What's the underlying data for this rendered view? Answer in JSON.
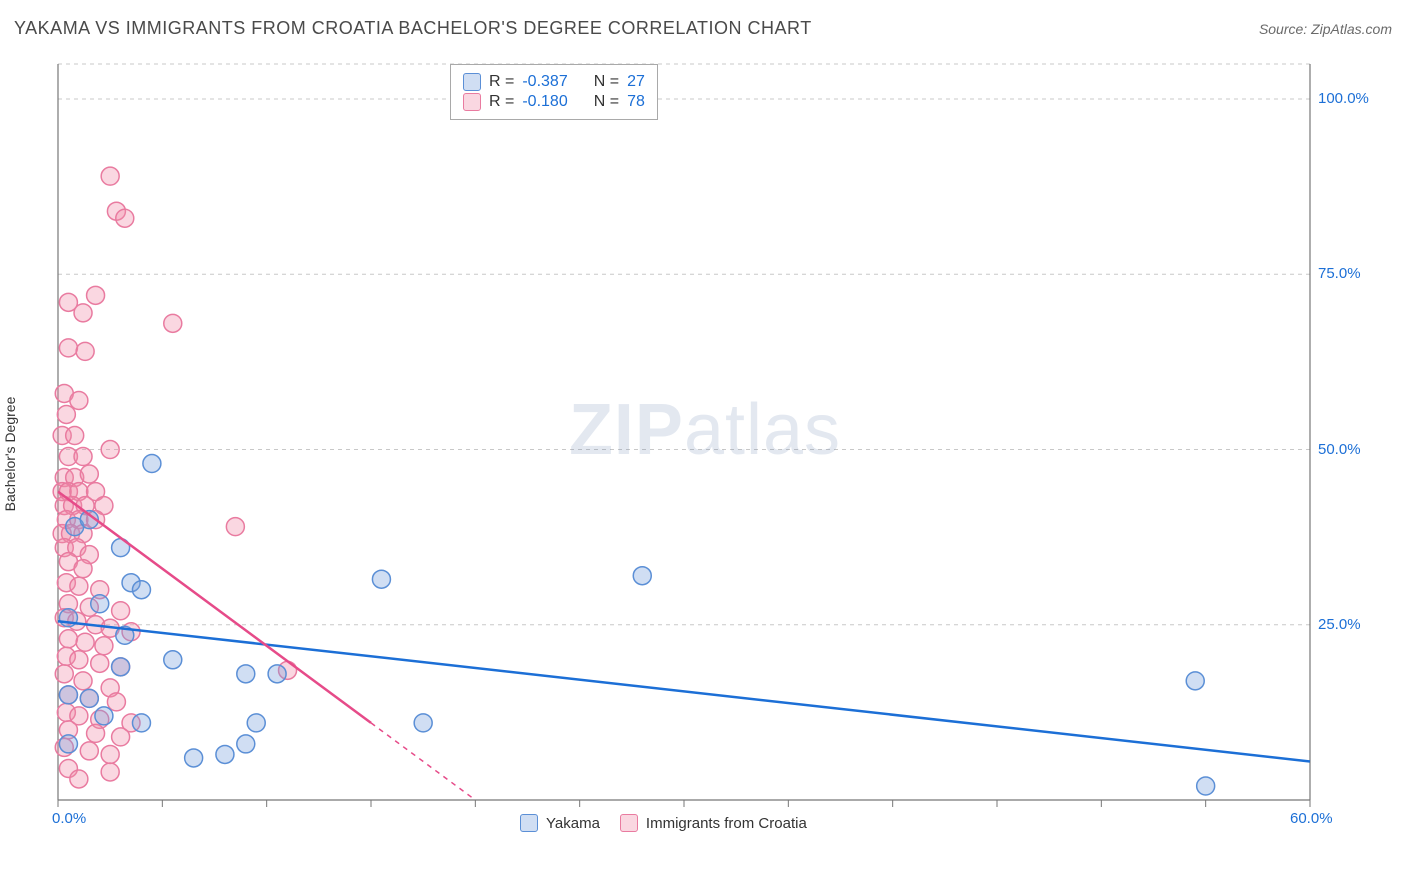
{
  "title": "YAKAMA VS IMMIGRANTS FROM CROATIA BACHELOR'S DEGREE CORRELATION CHART",
  "source_prefix": "Source: ",
  "source_name": "ZipAtlas.com",
  "watermark_zip": "ZIP",
  "watermark_atlas": "atlas",
  "ylabel": "Bachelor's Degree",
  "chart": {
    "type": "scatter",
    "xlim": [
      0,
      60
    ],
    "ylim": [
      0,
      105
    ],
    "x_ticks": [
      0,
      5,
      10,
      15,
      20,
      25,
      30,
      35,
      40,
      45,
      50,
      55,
      60
    ],
    "x_tick_labels": {
      "0": "0.0%",
      "60": "60.0%"
    },
    "y_gridlines": [
      25,
      50,
      75,
      100,
      105
    ],
    "y_tick_labels": {
      "25": "25.0%",
      "50": "50.0%",
      "75": "75.0%",
      "100": "100.0%"
    },
    "grid_color": "#c8c8c8",
    "axis_color": "#777777",
    "background": "#ffffff",
    "marker_radius": 9,
    "marker_stroke_width": 1.5,
    "trend_line_width": 2.5,
    "series": [
      {
        "name": "Yakama",
        "fill": "rgba(120,160,220,0.35)",
        "stroke": "#5b8fd6",
        "trend_color": "#1c6fd6",
        "R": "-0.387",
        "N": "27",
        "trend": {
          "x1": 0,
          "y1": 25.5,
          "x2": 60,
          "y2": 5.5,
          "dashed_from_x": 60
        },
        "points": [
          [
            4.5,
            48
          ],
          [
            0.8,
            39
          ],
          [
            3.5,
            31
          ],
          [
            4,
            30
          ],
          [
            15.5,
            31.5
          ],
          [
            28,
            32
          ],
          [
            2,
            28
          ],
          [
            0.5,
            26
          ],
          [
            3.2,
            23.5
          ],
          [
            5.5,
            20
          ],
          [
            3,
            19
          ],
          [
            9,
            18
          ],
          [
            10.5,
            18
          ],
          [
            0.5,
            15
          ],
          [
            1.5,
            14.5
          ],
          [
            2.2,
            12
          ],
          [
            4,
            11
          ],
          [
            9.5,
            11
          ],
          [
            9,
            8
          ],
          [
            17.5,
            11
          ],
          [
            6.5,
            6
          ],
          [
            8,
            6.5
          ],
          [
            0.5,
            8
          ],
          [
            54.5,
            17
          ],
          [
            55,
            2
          ],
          [
            1.5,
            40
          ],
          [
            3,
            36
          ]
        ]
      },
      {
        "name": "Immigrants from Croatia",
        "fill": "rgba(240,140,170,0.35)",
        "stroke": "#e97ba0",
        "trend_color": "#e64b89",
        "R": "-0.180",
        "N": "78",
        "trend": {
          "x1": 0,
          "y1": 44,
          "x2": 15,
          "y2": 11,
          "dashed_from_x": 15,
          "dash_x2": 20,
          "dash_y2": 0
        },
        "points": [
          [
            2.5,
            89
          ],
          [
            2.8,
            84
          ],
          [
            3.2,
            83
          ],
          [
            0.5,
            71
          ],
          [
            1.8,
            72
          ],
          [
            1.2,
            69.5
          ],
          [
            5.5,
            68
          ],
          [
            0.5,
            64.5
          ],
          [
            1.3,
            64
          ],
          [
            0.3,
            58
          ],
          [
            1,
            57
          ],
          [
            0.4,
            55
          ],
          [
            0.2,
            52
          ],
          [
            0.8,
            52
          ],
          [
            0.5,
            49
          ],
          [
            1.2,
            49
          ],
          [
            2.5,
            50
          ],
          [
            0.3,
            46
          ],
          [
            0.8,
            46
          ],
          [
            1.5,
            46.5
          ],
          [
            0.2,
            44
          ],
          [
            0.5,
            44
          ],
          [
            1,
            44
          ],
          [
            1.8,
            44
          ],
          [
            0.3,
            42
          ],
          [
            0.7,
            42
          ],
          [
            1.3,
            42
          ],
          [
            2.2,
            42
          ],
          [
            0.4,
            40
          ],
          [
            1,
            40
          ],
          [
            1.8,
            40
          ],
          [
            0.2,
            38
          ],
          [
            0.6,
            38
          ],
          [
            1.2,
            38
          ],
          [
            8.5,
            39
          ],
          [
            0.3,
            36
          ],
          [
            0.9,
            36
          ],
          [
            1.5,
            35
          ],
          [
            0.5,
            34
          ],
          [
            1.2,
            33
          ],
          [
            0.4,
            31
          ],
          [
            1,
            30.5
          ],
          [
            2,
            30
          ],
          [
            0.5,
            28
          ],
          [
            1.5,
            27.5
          ],
          [
            3,
            27
          ],
          [
            0.3,
            26
          ],
          [
            0.9,
            25.5
          ],
          [
            1.8,
            25
          ],
          [
            2.5,
            24.5
          ],
          [
            3.5,
            24
          ],
          [
            0.5,
            23
          ],
          [
            1.3,
            22.5
          ],
          [
            2.2,
            22
          ],
          [
            0.4,
            20.5
          ],
          [
            1,
            20
          ],
          [
            2,
            19.5
          ],
          [
            3,
            19
          ],
          [
            0.3,
            18
          ],
          [
            1.2,
            17
          ],
          [
            2.5,
            16
          ],
          [
            11,
            18.5
          ],
          [
            0.5,
            15
          ],
          [
            1.5,
            14.5
          ],
          [
            2.8,
            14
          ],
          [
            0.4,
            12.5
          ],
          [
            1,
            12
          ],
          [
            2,
            11.5
          ],
          [
            3.5,
            11
          ],
          [
            0.5,
            10
          ],
          [
            1.8,
            9.5
          ],
          [
            3,
            9
          ],
          [
            0.3,
            7.5
          ],
          [
            1.5,
            7
          ],
          [
            2.5,
            6.5
          ],
          [
            0.5,
            4.5
          ],
          [
            1,
            3
          ],
          [
            2.5,
            4
          ]
        ]
      }
    ]
  },
  "stat_box": {
    "r_label": "R =",
    "n_label": "N ="
  },
  "legend": {
    "items": [
      "Yakama",
      "Immigrants from Croatia"
    ]
  }
}
